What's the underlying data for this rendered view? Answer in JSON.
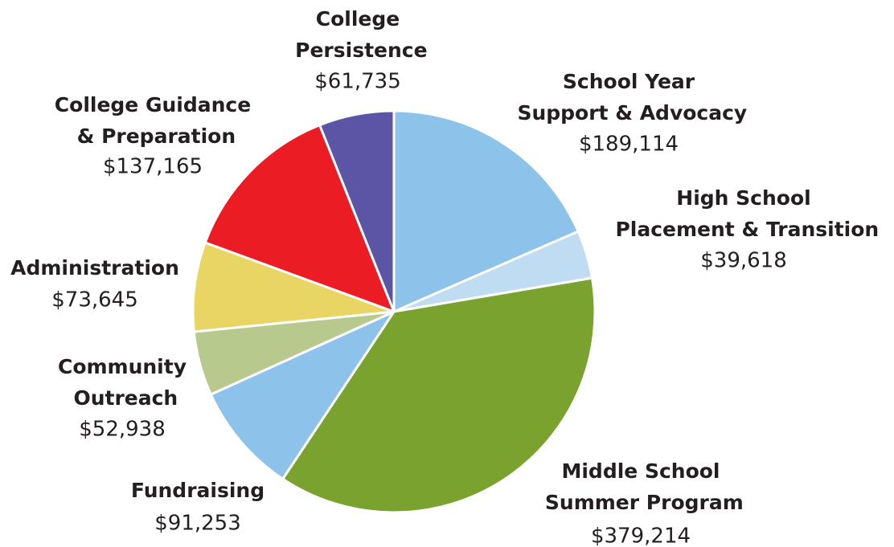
{
  "chart_data": {
    "type": "pie",
    "categories": [
      "School Year Support & Advocacy",
      "High School Placement & Transition",
      "Middle School Summer Program",
      "Fundraising",
      "Community Outreach",
      "Administration",
      "College Guidance & Preparation",
      "College Persistence"
    ],
    "values": [
      189114,
      39618,
      379214,
      91253,
      52938,
      73645,
      137165,
      61735
    ],
    "value_labels": [
      "$189,114",
      "$39,618",
      "$379,214",
      "$91,253",
      "$52,938",
      "$73,645",
      "$137,165",
      "$61,735"
    ],
    "colors": [
      "#8dc3ea",
      "#c0dcf2",
      "#7aa22f",
      "#8dc3ea",
      "#b7c98d",
      "#e9d564",
      "#ec1c24",
      "#5c54a4"
    ]
  }
}
